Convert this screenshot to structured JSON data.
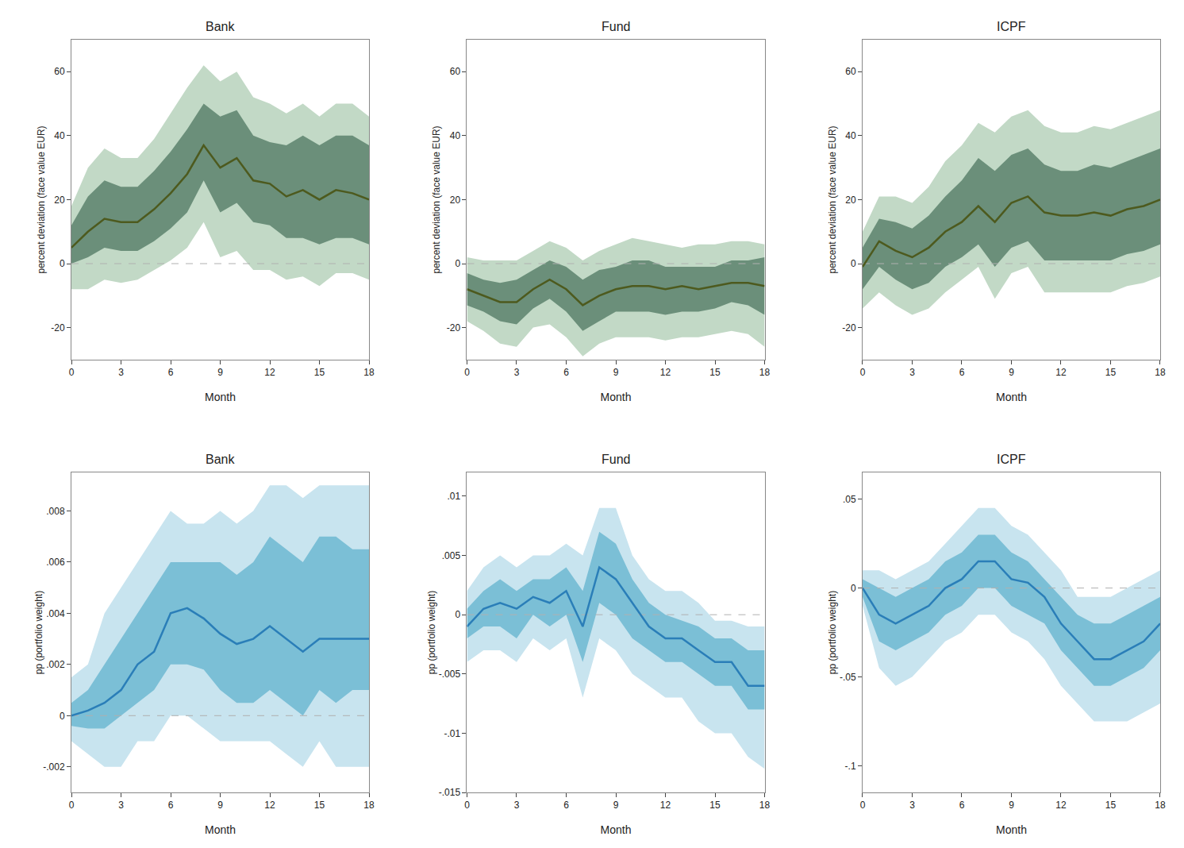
{
  "chart_data": [
    {
      "type": "line",
      "title": "Bank",
      "xlabel": "Month",
      "ylabel": "percent deviation (face value EUR)",
      "x": [
        0,
        1,
        2,
        3,
        4,
        5,
        6,
        7,
        8,
        9,
        10,
        11,
        12,
        13,
        14,
        15,
        16,
        17,
        18
      ],
      "xlim": [
        0,
        18
      ],
      "xticks": [
        0,
        3,
        6,
        9,
        12,
        15,
        18
      ],
      "ylim": [
        -30,
        70
      ],
      "yticks": [
        -20,
        0,
        20,
        40,
        60
      ],
      "grid": false,
      "series": [
        {
          "type": "band",
          "color": "#c2d9c6",
          "lower": [
            -8,
            -8,
            -5,
            -6,
            -5,
            -2,
            1,
            5,
            13,
            2,
            4,
            -2,
            -2,
            -5,
            -4,
            -7,
            -3,
            -3,
            -5
          ],
          "upper": [
            18,
            30,
            36,
            33,
            33,
            39,
            47,
            55,
            62,
            57,
            60,
            52,
            50,
            47,
            50,
            46,
            50,
            50,
            46
          ]
        },
        {
          "type": "band",
          "color": "#6b8f7a",
          "lower": [
            0,
            2,
            5,
            4,
            4,
            7,
            11,
            16,
            26,
            16,
            19,
            13,
            12,
            8,
            8,
            6,
            8,
            8,
            6
          ],
          "upper": [
            12,
            21,
            26,
            24,
            24,
            29,
            35,
            42,
            50,
            46,
            48,
            40,
            38,
            37,
            40,
            37,
            40,
            40,
            37
          ]
        },
        {
          "type": "hline",
          "color": "#b0b0b0",
          "line_style": "dashed",
          "y": 0
        },
        {
          "type": "line",
          "color": "#4d5a1e",
          "values": [
            5,
            10,
            14,
            13,
            13,
            17,
            22,
            28,
            37,
            30,
            33,
            26,
            25,
            21,
            23,
            20,
            23,
            22,
            20
          ]
        }
      ]
    },
    {
      "type": "line",
      "title": "Fund",
      "xlabel": "Month",
      "ylabel": "percent deviation (face value EUR)",
      "x": [
        0,
        1,
        2,
        3,
        4,
        5,
        6,
        7,
        8,
        9,
        10,
        11,
        12,
        13,
        14,
        15,
        16,
        17,
        18
      ],
      "xlim": [
        0,
        18
      ],
      "xticks": [
        0,
        3,
        6,
        9,
        12,
        15,
        18
      ],
      "ylim": [
        -30,
        70
      ],
      "yticks": [
        -20,
        0,
        20,
        40,
        60
      ],
      "grid": false,
      "series": [
        {
          "type": "band",
          "color": "#c2d9c6",
          "lower": [
            -18,
            -21,
            -25,
            -26,
            -20,
            -19,
            -23,
            -29,
            -25,
            -23,
            -23,
            -23,
            -24,
            -23,
            -23,
            -22,
            -21,
            -22,
            -26
          ],
          "upper": [
            2,
            1,
            1,
            1,
            4,
            7,
            5,
            1,
            4,
            6,
            8,
            7,
            6,
            5,
            6,
            6,
            7,
            7,
            6
          ]
        },
        {
          "type": "band",
          "color": "#6b8f7a",
          "lower": [
            -13,
            -15,
            -18,
            -19,
            -14,
            -11,
            -15,
            -21,
            -18,
            -15,
            -15,
            -15,
            -16,
            -15,
            -15,
            -14,
            -12,
            -13,
            -16
          ],
          "upper": [
            -3,
            -5,
            -6,
            -5,
            -2,
            1,
            -1,
            -5,
            -2,
            -1,
            1,
            1,
            -1,
            -1,
            -1,
            -1,
            1,
            1,
            2
          ]
        },
        {
          "type": "hline",
          "color": "#b0b0b0",
          "line_style": "dashed",
          "y": 0
        },
        {
          "type": "line",
          "color": "#4d5a1e",
          "values": [
            -8,
            -10,
            -12,
            -12,
            -8,
            -5,
            -8,
            -13,
            -10,
            -8,
            -7,
            -7,
            -8,
            -7,
            -8,
            -7,
            -6,
            -6,
            -7
          ]
        }
      ]
    },
    {
      "type": "line",
      "title": "ICPF",
      "xlabel": "Month",
      "ylabel": "percent deviation (face value EUR)",
      "x": [
        0,
        1,
        2,
        3,
        4,
        5,
        6,
        7,
        8,
        9,
        10,
        11,
        12,
        13,
        14,
        15,
        16,
        17,
        18
      ],
      "xlim": [
        0,
        18
      ],
      "xticks": [
        0,
        3,
        6,
        9,
        12,
        15,
        18
      ],
      "ylim": [
        -30,
        70
      ],
      "yticks": [
        -20,
        0,
        20,
        40,
        60
      ],
      "grid": false,
      "series": [
        {
          "type": "band",
          "color": "#c2d9c6",
          "lower": [
            -14,
            -9,
            -13,
            -16,
            -14,
            -9,
            -5,
            -1,
            -11,
            -3,
            -1,
            -9,
            -9,
            -9,
            -9,
            -9,
            -7,
            -6,
            -4
          ],
          "upper": [
            10,
            21,
            21,
            19,
            24,
            32,
            37,
            44,
            41,
            46,
            48,
            43,
            41,
            41,
            43,
            42,
            44,
            46,
            48
          ]
        },
        {
          "type": "band",
          "color": "#6b8f7a",
          "lower": [
            -8,
            -1,
            -5,
            -8,
            -6,
            -1,
            2,
            6,
            -1,
            5,
            7,
            1,
            1,
            1,
            1,
            1,
            3,
            4,
            6
          ],
          "upper": [
            5,
            14,
            13,
            11,
            15,
            21,
            26,
            33,
            29,
            34,
            36,
            31,
            29,
            29,
            31,
            30,
            32,
            34,
            36
          ]
        },
        {
          "type": "hline",
          "color": "#b0b0b0",
          "line_style": "dashed",
          "y": 0
        },
        {
          "type": "line",
          "color": "#4d5a1e",
          "values": [
            -1,
            7,
            4,
            2,
            5,
            10,
            13,
            18,
            13,
            19,
            21,
            16,
            15,
            15,
            16,
            15,
            17,
            18,
            20
          ]
        }
      ]
    },
    {
      "type": "line",
      "title": "Bank",
      "xlabel": "Month",
      "ylabel": "pp (portfolio weight)",
      "x": [
        0,
        1,
        2,
        3,
        4,
        5,
        6,
        7,
        8,
        9,
        10,
        11,
        12,
        13,
        14,
        15,
        16,
        17,
        18
      ],
      "xlim": [
        0,
        18
      ],
      "xticks": [
        0,
        3,
        6,
        9,
        12,
        15,
        18
      ],
      "ylim": [
        -0.003,
        0.0095
      ],
      "yticks": [
        {
          "value": -0.002,
          "label": "-.002"
        },
        0,
        {
          "value": 0.002,
          "label": ".002"
        },
        {
          "value": 0.004,
          "label": ".004"
        },
        {
          "value": 0.006,
          "label": ".006"
        },
        {
          "value": 0.008,
          "label": ".008"
        }
      ],
      "grid": false,
      "series": [
        {
          "type": "band",
          "color": "#c8e4ef",
          "lower": [
            -0.001,
            -0.0015,
            -0.002,
            -0.002,
            -0.001,
            -0.001,
            0.0,
            0.0,
            -0.0005,
            -0.001,
            -0.001,
            -0.001,
            -0.001,
            -0.0015,
            -0.002,
            -0.001,
            -0.002,
            -0.002,
            -0.002
          ],
          "upper": [
            0.0015,
            0.002,
            0.004,
            0.005,
            0.006,
            0.007,
            0.008,
            0.0075,
            0.0075,
            0.008,
            0.0075,
            0.008,
            0.009,
            0.009,
            0.0085,
            0.009,
            0.009,
            0.009,
            0.009
          ]
        },
        {
          "type": "band",
          "color": "#7bbfd6",
          "lower": [
            -0.0004,
            -0.0005,
            -0.0005,
            0.0,
            0.0005,
            0.001,
            0.002,
            0.002,
            0.0018,
            0.001,
            0.0005,
            0.0005,
            0.001,
            0.0005,
            0.0,
            0.001,
            0.0005,
            0.001,
            0.001
          ],
          "upper": [
            0.0005,
            0.001,
            0.002,
            0.003,
            0.004,
            0.005,
            0.006,
            0.006,
            0.006,
            0.006,
            0.0055,
            0.006,
            0.007,
            0.0065,
            0.006,
            0.007,
            0.007,
            0.0065,
            0.0065
          ]
        },
        {
          "type": "hline",
          "color": "#b0b0b0",
          "line_style": "dashed",
          "y": 0
        },
        {
          "type": "line",
          "color": "#2a7eb8",
          "values": [
            0.0,
            0.0002,
            0.0005,
            0.001,
            0.002,
            0.0025,
            0.004,
            0.0042,
            0.0038,
            0.0032,
            0.0028,
            0.003,
            0.0035,
            0.003,
            0.0025,
            0.003,
            0.003,
            0.003,
            0.003
          ]
        }
      ]
    },
    {
      "type": "line",
      "title": "Fund",
      "xlabel": "Month",
      "ylabel": "pp (portfolio weight)",
      "x": [
        0,
        1,
        2,
        3,
        4,
        5,
        6,
        7,
        8,
        9,
        10,
        11,
        12,
        13,
        14,
        15,
        16,
        17,
        18
      ],
      "xlim": [
        0,
        18
      ],
      "xticks": [
        0,
        3,
        6,
        9,
        12,
        15,
        18
      ],
      "ylim": [
        -0.015,
        0.012
      ],
      "yticks": [
        {
          "value": -0.015,
          "label": "-.015"
        },
        {
          "value": -0.01,
          "label": "-.01"
        },
        {
          "value": -0.005,
          "label": "-.005"
        },
        0,
        {
          "value": 0.005,
          "label": ".005"
        },
        {
          "value": 0.01,
          "label": ".01"
        }
      ],
      "grid": false,
      "series": [
        {
          "type": "band",
          "color": "#c8e4ef",
          "lower": [
            -0.004,
            -0.003,
            -0.003,
            -0.004,
            -0.002,
            -0.003,
            -0.002,
            -0.007,
            -0.002,
            -0.003,
            -0.005,
            -0.006,
            -0.007,
            -0.007,
            -0.009,
            -0.01,
            -0.01,
            -0.012,
            -0.013
          ],
          "upper": [
            0.002,
            0.004,
            0.005,
            0.004,
            0.005,
            0.005,
            0.006,
            0.005,
            0.009,
            0.009,
            0.005,
            0.003,
            0.002,
            0.002,
            0.001,
            -0.0005,
            -0.0005,
            -0.001,
            -0.001
          ]
        },
        {
          "type": "band",
          "color": "#7bbfd6",
          "lower": [
            -0.002,
            -0.001,
            -0.001,
            -0.002,
            0.0,
            -0.001,
            0.0,
            -0.004,
            0.001,
            0.0,
            -0.002,
            -0.003,
            -0.004,
            -0.004,
            -0.005,
            -0.006,
            -0.006,
            -0.008,
            -0.008
          ],
          "upper": [
            0.0005,
            0.002,
            0.003,
            0.002,
            0.003,
            0.003,
            0.004,
            0.002,
            0.007,
            0.006,
            0.003,
            0.001,
            0.0,
            -0.0005,
            -0.001,
            -0.002,
            -0.002,
            -0.003,
            -0.003
          ]
        },
        {
          "type": "hline",
          "color": "#b0b0b0",
          "line_style": "dashed",
          "y": 0
        },
        {
          "type": "line",
          "color": "#2a7eb8",
          "values": [
            -0.001,
            0.0005,
            0.001,
            0.0005,
            0.0015,
            0.001,
            0.002,
            -0.001,
            0.004,
            0.003,
            0.001,
            -0.001,
            -0.002,
            -0.002,
            -0.003,
            -0.004,
            -0.004,
            -0.006,
            -0.006
          ]
        }
      ]
    },
    {
      "type": "line",
      "title": "ICPF",
      "xlabel": "Month",
      "ylabel": "pp (portfolio weight)",
      "x": [
        0,
        1,
        2,
        3,
        4,
        5,
        6,
        7,
        8,
        9,
        10,
        11,
        12,
        13,
        14,
        15,
        16,
        17,
        18
      ],
      "xlim": [
        0,
        18
      ],
      "xticks": [
        0,
        3,
        6,
        9,
        12,
        15,
        18
      ],
      "ylim": [
        -0.115,
        0.065
      ],
      "yticks": [
        {
          "value": -0.1,
          "label": "-.1"
        },
        {
          "value": -0.05,
          "label": "-.05"
        },
        0,
        {
          "value": 0.05,
          "label": ".05"
        }
      ],
      "grid": false,
      "series": [
        {
          "type": "band",
          "color": "#c8e4ef",
          "lower": [
            -0.01,
            -0.045,
            -0.055,
            -0.05,
            -0.04,
            -0.03,
            -0.025,
            -0.015,
            -0.015,
            -0.025,
            -0.03,
            -0.04,
            -0.055,
            -0.065,
            -0.075,
            -0.075,
            -0.075,
            -0.07,
            -0.065
          ],
          "upper": [
            0.01,
            0.01,
            0.005,
            0.01,
            0.015,
            0.025,
            0.035,
            0.045,
            0.045,
            0.035,
            0.03,
            0.02,
            0.01,
            -0.005,
            -0.005,
            -0.005,
            0.0,
            0.005,
            0.01
          ]
        },
        {
          "type": "band",
          "color": "#7bbfd6",
          "lower": [
            -0.005,
            -0.03,
            -0.035,
            -0.03,
            -0.025,
            -0.015,
            -0.01,
            0.0,
            0.0,
            -0.01,
            -0.015,
            -0.02,
            -0.035,
            -0.045,
            -0.055,
            -0.055,
            -0.05,
            -0.045,
            -0.035
          ],
          "upper": [
            0.005,
            0.0,
            -0.005,
            0.0,
            0.005,
            0.015,
            0.02,
            0.03,
            0.03,
            0.02,
            0.015,
            0.005,
            -0.005,
            -0.015,
            -0.02,
            -0.02,
            -0.015,
            -0.01,
            -0.005
          ]
        },
        {
          "type": "hline",
          "color": "#b0b0b0",
          "line_style": "dashed",
          "y": 0
        },
        {
          "type": "line",
          "color": "#2a7eb8",
          "values": [
            0.0,
            -0.015,
            -0.02,
            -0.015,
            -0.01,
            0.0,
            0.005,
            0.015,
            0.015,
            0.005,
            0.003,
            -0.005,
            -0.02,
            -0.03,
            -0.04,
            -0.04,
            -0.035,
            -0.03,
            -0.02
          ]
        }
      ]
    }
  ]
}
